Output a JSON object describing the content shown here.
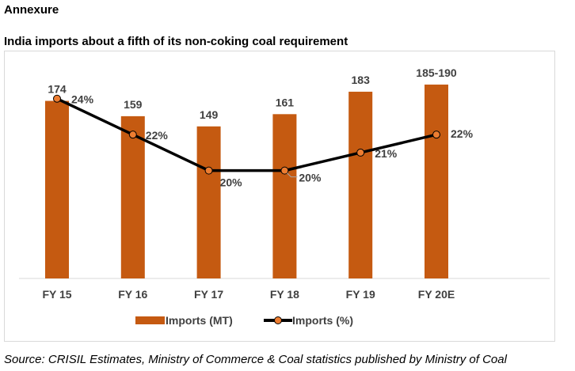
{
  "page": {
    "heading": "Annexure",
    "source": "Source: CRISIL Estimates, Ministry of Commerce & Coal statistics published by Ministry of Coal"
  },
  "chart_data": {
    "type": "bar",
    "title": "India imports about a fifth of its non-coking coal requirement",
    "xlabel": "",
    "ylabel": "",
    "categories": [
      "FY 15",
      "FY 16",
      "FY 17",
      "FY 18",
      "FY 19",
      "FY 20E"
    ],
    "series": [
      {
        "name": "Imports (MT)",
        "kind": "bar",
        "axis": "primary",
        "values": [
          174,
          159,
          149,
          161,
          183,
          190
        ],
        "labels": [
          "174",
          "159",
          "149",
          "161",
          "183",
          "185-190"
        ],
        "color": "#c55a11"
      },
      {
        "name": "Imports (%)",
        "kind": "line",
        "axis": "secondary",
        "values": [
          24,
          22,
          20,
          20,
          21,
          22
        ],
        "labels": [
          "24%",
          "22%",
          "20%",
          "20%",
          "21%",
          "22%"
        ],
        "color": "#000000",
        "marker_color": "#ed7d31"
      }
    ],
    "ylim": [
      0,
      200
    ],
    "y2lim": [
      14,
      25
    ],
    "grid": false,
    "legend": "bottom-center",
    "label_color": "#404040"
  }
}
